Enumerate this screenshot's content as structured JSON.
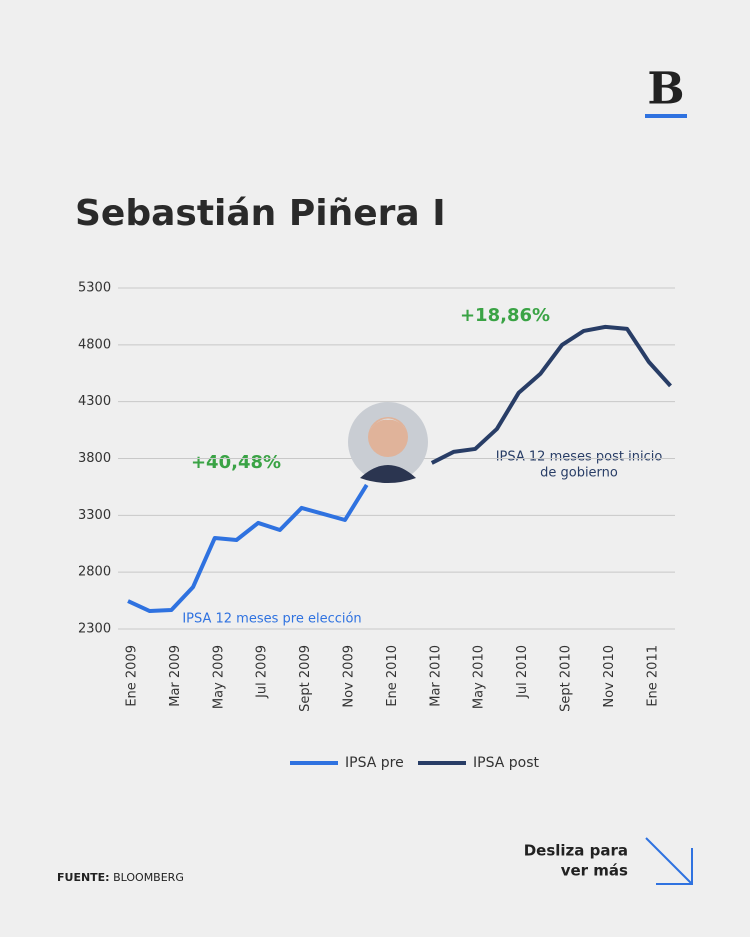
{
  "logo": "B",
  "chart_data": {
    "type": "line",
    "title": "Sebastián Piñera I",
    "categories": [
      "Ene 2009",
      null,
      "Mar 2009",
      null,
      "May 2009",
      null,
      "Jul 2009",
      null,
      "Sept 2009",
      null,
      "Nov 2009",
      null,
      "Ene 2010",
      null,
      "Mar 2010",
      null,
      "May 2010",
      null,
      "Jul 2010",
      null,
      "Sept 2010",
      null,
      "Nov 2010",
      null,
      "Ene 2011",
      null
    ],
    "series": [
      {
        "name": "IPSA pre",
        "color": "#2f72e0",
        "values": [
          2546,
          2458,
          2467,
          2670,
          3101,
          3083,
          3233,
          3171,
          3365,
          3312,
          3259,
          3567,
          null,
          null,
          null,
          null,
          null,
          null,
          null,
          null,
          null,
          null,
          null,
          null,
          null,
          null
        ]
      },
      {
        "name": "IPSA post",
        "color": "#283d66",
        "values": [
          null,
          null,
          null,
          null,
          null,
          null,
          null,
          null,
          null,
          null,
          null,
          null,
          null,
          null,
          3761,
          3858,
          3884,
          4060,
          4377,
          4544,
          4799,
          4922,
          4958,
          4940,
          4650,
          4439
        ]
      }
    ],
    "ylim": [
      2300,
      5300
    ],
    "yticks": [
      2300,
      2800,
      3300,
      3800,
      4300,
      4800,
      5300
    ],
    "grid": true,
    "annotations": [
      "+40,48%",
      "+18,86%",
      "IPSA 12 meses pre elección",
      "IPSA 12 meses post inicio",
      "de gobierno"
    ]
  },
  "footer": {
    "source_label": "FUENTE:",
    "source": "BLOOMBERG",
    "swipe": [
      "Desliza para",
      "ver más"
    ]
  }
}
